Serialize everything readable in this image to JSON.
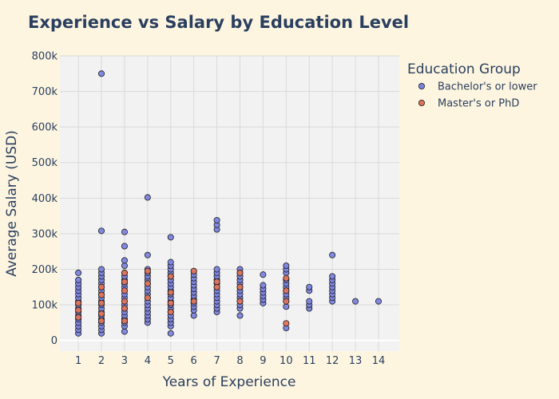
{
  "chart_data": {
    "type": "scatter",
    "title": "Experience vs Salary by Education Level",
    "xlabel": "Years of Experience",
    "ylabel": "Average Salary (USD)",
    "xlim": [
      0.2,
      14.9
    ],
    "ylim": [
      -30000,
      800000
    ],
    "x_ticks": [
      1,
      2,
      3,
      4,
      5,
      6,
      7,
      8,
      9,
      10,
      11,
      12,
      13,
      14
    ],
    "x_tick_labels": [
      "1",
      "2",
      "3",
      "4",
      "5",
      "6",
      "7",
      "8",
      "9",
      "10",
      "11",
      "12",
      "13",
      "14"
    ],
    "y_ticks": [
      0,
      100000,
      200000,
      300000,
      400000,
      500000,
      600000,
      700000,
      800000
    ],
    "y_tick_labels": [
      "0",
      "100k",
      "200k",
      "300k",
      "400k",
      "500k",
      "600k",
      "700k",
      "800k"
    ],
    "grid": true,
    "legend": {
      "title": "Education Group",
      "placement": "top-right"
    },
    "colors": {
      "background": "#fdf5e0",
      "plot_bg": "#f2f2f2",
      "grid": "#d9d9d9",
      "text": "#2a3f5f",
      "marker_edge": "#1a1a1a"
    },
    "series": [
      {
        "name": "Bachelor's or lower",
        "color": "#7b83e0",
        "points": [
          [
            1,
            20000
          ],
          [
            1,
            30000
          ],
          [
            1,
            40000
          ],
          [
            1,
            50000
          ],
          [
            1,
            60000
          ],
          [
            1,
            70000
          ],
          [
            1,
            80000
          ],
          [
            1,
            90000
          ],
          [
            1,
            100000
          ],
          [
            1,
            110000
          ],
          [
            1,
            120000
          ],
          [
            1,
            130000
          ],
          [
            1,
            140000
          ],
          [
            1,
            150000
          ],
          [
            1,
            160000
          ],
          [
            1,
            170000
          ],
          [
            1,
            190000
          ],
          [
            2,
            20000
          ],
          [
            2,
            30000
          ],
          [
            2,
            40000
          ],
          [
            2,
            50000
          ],
          [
            2,
            60000
          ],
          [
            2,
            70000
          ],
          [
            2,
            80000
          ],
          [
            2,
            90000
          ],
          [
            2,
            100000
          ],
          [
            2,
            110000
          ],
          [
            2,
            120000
          ],
          [
            2,
            130000
          ],
          [
            2,
            140000
          ],
          [
            2,
            150000
          ],
          [
            2,
            160000
          ],
          [
            2,
            170000
          ],
          [
            2,
            180000
          ],
          [
            2,
            190000
          ],
          [
            2,
            200000
          ],
          [
            2,
            308000
          ],
          [
            2,
            750000
          ],
          [
            3,
            25000
          ],
          [
            3,
            40000
          ],
          [
            3,
            50000
          ],
          [
            3,
            60000
          ],
          [
            3,
            70000
          ],
          [
            3,
            80000
          ],
          [
            3,
            90000
          ],
          [
            3,
            100000
          ],
          [
            3,
            110000
          ],
          [
            3,
            120000
          ],
          [
            3,
            130000
          ],
          [
            3,
            140000
          ],
          [
            3,
            150000
          ],
          [
            3,
            160000
          ],
          [
            3,
            170000
          ],
          [
            3,
            180000
          ],
          [
            3,
            190000
          ],
          [
            3,
            210000
          ],
          [
            3,
            225000
          ],
          [
            3,
            265000
          ],
          [
            3,
            305000
          ],
          [
            4,
            50000
          ],
          [
            4,
            60000
          ],
          [
            4,
            70000
          ],
          [
            4,
            80000
          ],
          [
            4,
            90000
          ],
          [
            4,
            100000
          ],
          [
            4,
            110000
          ],
          [
            4,
            120000
          ],
          [
            4,
            130000
          ],
          [
            4,
            140000
          ],
          [
            4,
            150000
          ],
          [
            4,
            160000
          ],
          [
            4,
            170000
          ],
          [
            4,
            180000
          ],
          [
            4,
            190000
          ],
          [
            4,
            200000
          ],
          [
            4,
            240000
          ],
          [
            4,
            402000
          ],
          [
            5,
            20000
          ],
          [
            5,
            40000
          ],
          [
            5,
            50000
          ],
          [
            5,
            60000
          ],
          [
            5,
            70000
          ],
          [
            5,
            80000
          ],
          [
            5,
            90000
          ],
          [
            5,
            100000
          ],
          [
            5,
            110000
          ],
          [
            5,
            120000
          ],
          [
            5,
            130000
          ],
          [
            5,
            140000
          ],
          [
            5,
            150000
          ],
          [
            5,
            160000
          ],
          [
            5,
            170000
          ],
          [
            5,
            180000
          ],
          [
            5,
            190000
          ],
          [
            5,
            200000
          ],
          [
            5,
            210000
          ],
          [
            5,
            220000
          ],
          [
            5,
            290000
          ],
          [
            6,
            70000
          ],
          [
            6,
            85000
          ],
          [
            6,
            95000
          ],
          [
            6,
            105000
          ],
          [
            6,
            115000
          ],
          [
            6,
            125000
          ],
          [
            6,
            135000
          ],
          [
            6,
            145000
          ],
          [
            6,
            155000
          ],
          [
            6,
            165000
          ],
          [
            6,
            175000
          ],
          [
            6,
            185000
          ],
          [
            6,
            195000
          ],
          [
            7,
            80000
          ],
          [
            7,
            90000
          ],
          [
            7,
            100000
          ],
          [
            7,
            110000
          ],
          [
            7,
            120000
          ],
          [
            7,
            130000
          ],
          [
            7,
            140000
          ],
          [
            7,
            150000
          ],
          [
            7,
            160000
          ],
          [
            7,
            170000
          ],
          [
            7,
            180000
          ],
          [
            7,
            190000
          ],
          [
            7,
            200000
          ],
          [
            7,
            312000
          ],
          [
            7,
            325000
          ],
          [
            7,
            338000
          ],
          [
            8,
            70000
          ],
          [
            8,
            90000
          ],
          [
            8,
            100000
          ],
          [
            8,
            110000
          ],
          [
            8,
            120000
          ],
          [
            8,
            130000
          ],
          [
            8,
            140000
          ],
          [
            8,
            150000
          ],
          [
            8,
            160000
          ],
          [
            8,
            170000
          ],
          [
            8,
            180000
          ],
          [
            8,
            190000
          ],
          [
            8,
            200000
          ],
          [
            9,
            105000
          ],
          [
            9,
            115000
          ],
          [
            9,
            125000
          ],
          [
            9,
            135000
          ],
          [
            9,
            145000
          ],
          [
            9,
            155000
          ],
          [
            9,
            185000
          ],
          [
            10,
            35000
          ],
          [
            10,
            95000
          ],
          [
            10,
            110000
          ],
          [
            10,
            120000
          ],
          [
            10,
            130000
          ],
          [
            10,
            140000
          ],
          [
            10,
            150000
          ],
          [
            10,
            160000
          ],
          [
            10,
            170000
          ],
          [
            10,
            190000
          ],
          [
            10,
            200000
          ],
          [
            10,
            210000
          ],
          [
            11,
            90000
          ],
          [
            11,
            100000
          ],
          [
            11,
            110000
          ],
          [
            11,
            140000
          ],
          [
            11,
            150000
          ],
          [
            12,
            110000
          ],
          [
            12,
            120000
          ],
          [
            12,
            130000
          ],
          [
            12,
            140000
          ],
          [
            12,
            150000
          ],
          [
            12,
            160000
          ],
          [
            12,
            170000
          ],
          [
            12,
            180000
          ],
          [
            12,
            240000
          ],
          [
            13,
            110000
          ],
          [
            14,
            110000
          ]
        ]
      },
      {
        "name": "Master's or PhD",
        "color": "#e0735a",
        "points": [
          [
            1,
            65000
          ],
          [
            1,
            85000
          ],
          [
            1,
            105000
          ],
          [
            2,
            55000
          ],
          [
            2,
            75000
          ],
          [
            2,
            105000
          ],
          [
            2,
            128000
          ],
          [
            2,
            150000
          ],
          [
            3,
            55000
          ],
          [
            3,
            90000
          ],
          [
            3,
            110000
          ],
          [
            3,
            140000
          ],
          [
            3,
            165000
          ],
          [
            3,
            190000
          ],
          [
            4,
            120000
          ],
          [
            4,
            160000
          ],
          [
            4,
            195000
          ],
          [
            5,
            80000
          ],
          [
            5,
            105000
          ],
          [
            5,
            135000
          ],
          [
            5,
            180000
          ],
          [
            6,
            110000
          ],
          [
            6,
            195000
          ],
          [
            7,
            150000
          ],
          [
            7,
            165000
          ],
          [
            8,
            110000
          ],
          [
            8,
            150000
          ],
          [
            8,
            190000
          ],
          [
            10,
            48000
          ],
          [
            10,
            110000
          ],
          [
            10,
            140000
          ],
          [
            10,
            175000
          ]
        ]
      }
    ]
  }
}
